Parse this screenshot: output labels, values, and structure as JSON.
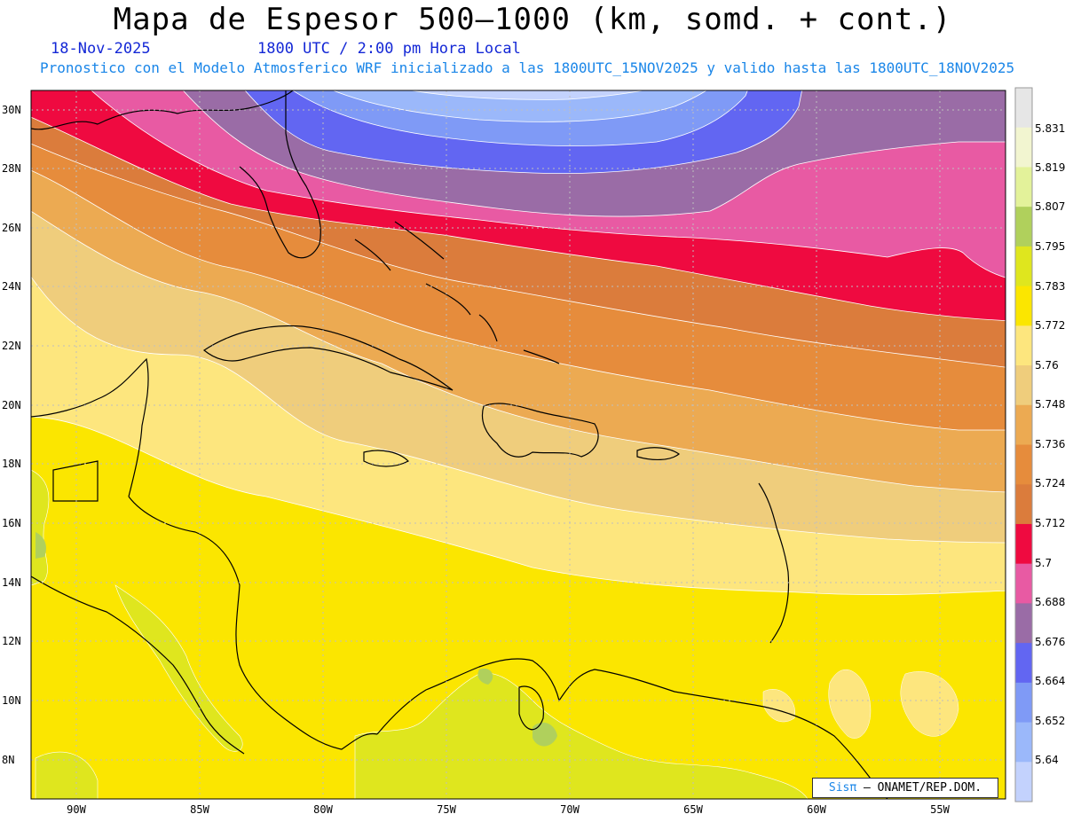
{
  "header": {
    "title": "Mapa de Espesor 500—1000 (km, somd. + cont.)",
    "date": "18-Nov-2025",
    "time": "1800 UTC / 2:00 pm Hora Local",
    "model_note": "Pronostico con el Modelo Atmosferico WRF inicializado a las 1800UTC_15NOV2025 y valido hasta las  1800UTC_18NOV2025"
  },
  "map": {
    "lat_labels": [
      "30N",
      "28N",
      "26N",
      "24N",
      "22N",
      "20N",
      "18N",
      "16N",
      "14N",
      "12N",
      "10N",
      "8N"
    ],
    "lon_labels": [
      "90W",
      "85W",
      "80W",
      "75W",
      "70W",
      "65W",
      "60W",
      "55W"
    ],
    "field": "500-1000 hPa thickness (km)",
    "gradient": "thickness decreases northward; maximum near 13N over Central America and the southern Caribbean, minimum off the Carolinas near 30N 72W"
  },
  "colorbar": {
    "labels": [
      "5.831",
      "5.819",
      "5.807",
      "5.795",
      "5.783",
      "5.772",
      "5.76",
      "5.748",
      "5.736",
      "5.724",
      "5.712",
      "5.7",
      "5.688",
      "5.676",
      "5.664",
      "5.652",
      "5.64"
    ],
    "colors": [
      "#e6e6e6",
      "#f2f5d0",
      "#e3f29a",
      "#b0d05c",
      "#dfe61e",
      "#fbe600",
      "#fde67e",
      "#efcd7c",
      "#ecaa52",
      "#e68c3c",
      "#db7c3c",
      "#ef0a40",
      "#e85aa3",
      "#9a6ca6",
      "#6266f2",
      "#7f9af6",
      "#9bb8fa",
      "#c3d2fd"
    ]
  },
  "credit": {
    "brand": "Sisπ",
    "org": " — ONAMET/REP.DOM."
  }
}
